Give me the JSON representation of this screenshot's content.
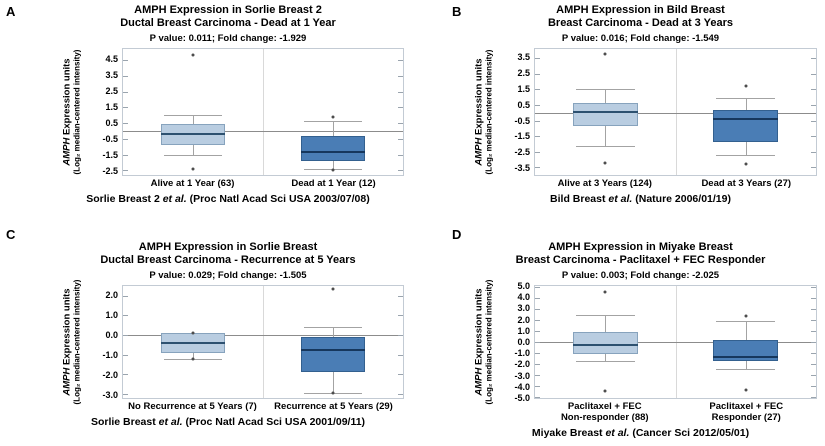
{
  "colors": {
    "box_light_fill": "#b9cde1",
    "box_light_border": "#87a3bd",
    "box_light_median": "#2d5170",
    "box_dark_fill": "#4a7db5",
    "box_dark_border": "#33608f",
    "box_dark_median": "#16375d",
    "whisker": "#a3a3a3",
    "frame": "#c3cbd4",
    "divider": "#d9d9d9",
    "refline": "#8c8c8c",
    "tickmark": "#9aa4ae",
    "outlier": "#4d4d4d"
  },
  "chart_data": [
    {
      "type": "box",
      "panel_label": "A",
      "title_line1": "AMPH Expression in Sorlie Breast 2",
      "title_line2": "Ductal Breast Carcinoma - Dead at 1 Year",
      "stats": "P value: 0.011;  Fold change: -1.929",
      "ylabel_gene": "AMPH",
      "ylabel_rest": " Expression units",
      "ylabel_sub": "(Log₂ median-centered intensity)",
      "yticks": [
        "4.5",
        "3.5",
        "2.5",
        "1.5",
        "0.5",
        "-0.5",
        "-1.5",
        "-2.5"
      ],
      "ylim": [
        -2.8,
        5.2
      ],
      "refline": 0,
      "grid": false,
      "groups": [
        {
          "label_lines": [
            "Alive at 1 Year (63)"
          ],
          "style": "light",
          "whisker_low": -1.55,
          "q1": -0.9,
          "median": -0.2,
          "q3": 0.45,
          "whisker_high": 1.0,
          "outliers": [
            4.8,
            -2.45
          ]
        },
        {
          "label_lines": [
            "Dead at 1 Year (12)"
          ],
          "style": "dark",
          "whisker_low": -2.45,
          "q1": -1.9,
          "median": -1.35,
          "q3": -0.3,
          "whisker_high": 0.65,
          "outliers": [
            0.9,
            -2.5
          ]
        }
      ],
      "caption_pre": "Sorlie Breast 2 ",
      "caption_italic": "et al.",
      "caption_post": " (Proc Natl Acad Sci USA 2003/07/08)"
    },
    {
      "type": "box",
      "panel_label": "B",
      "title_line1": "AMPH Expression in Bild Breast",
      "title_line2": "Breast Carcinoma - Dead at 3 Years",
      "stats": "P value: 0.016;  Fold change: -1.549",
      "ylabel_gene": "AMPH",
      "ylabel_rest": " Expression units",
      "ylabel_sub": "(Log₂ median-centered intensity)",
      "yticks": [
        "3.5",
        "2.5",
        "1.5",
        "0.5",
        "-0.5",
        "-1.5",
        "-2.5",
        "-3.5"
      ],
      "ylim": [
        -4.0,
        4.1
      ],
      "refline": 0,
      "grid": false,
      "groups": [
        {
          "label_lines": [
            "Alive at 3 Years (124)"
          ],
          "style": "light",
          "whisker_low": -2.15,
          "q1": -0.85,
          "median": 0.05,
          "q3": 0.65,
          "whisker_high": 1.55,
          "outliers": [
            3.8,
            -3.25
          ]
        },
        {
          "label_lines": [
            "Dead at 3 Years (27)"
          ],
          "style": "dark",
          "whisker_low": -2.7,
          "q1": -1.85,
          "median": -0.4,
          "q3": 0.15,
          "whisker_high": 0.95,
          "outliers": [
            1.7,
            -3.3
          ]
        }
      ],
      "caption_pre": "Bild Breast ",
      "caption_italic": "et al.",
      "caption_post": " (Nature 2006/01/19)"
    },
    {
      "type": "box",
      "panel_label": "C",
      "title_line1": "AMPH Expression in Sorlie Breast",
      "title_line2": "Ductal Breast Carcinoma - Recurrence at 5 Years",
      "stats": "P value: 0.029;  Fold change: -1.505",
      "ylabel_gene": "AMPH",
      "ylabel_rest": " Expression units",
      "ylabel_sub": "(Log₂ median-centered intensity)",
      "yticks": [
        "2.0",
        "1.0",
        "0.0",
        "-1.0",
        "-2.0",
        "-3.0"
      ],
      "ylim": [
        -3.2,
        2.5
      ],
      "refline": 0,
      "grid": false,
      "groups": [
        {
          "label_lines": [
            "No Recurrence at 5 Years (7)"
          ],
          "style": "light",
          "whisker_low": -1.2,
          "q1": -0.9,
          "median": -0.4,
          "q3": 0.1,
          "whisker_high": 0.1,
          "outliers": [
            0.1,
            -1.2
          ]
        },
        {
          "label_lines": [
            "Recurrence at 5 Years (29)"
          ],
          "style": "dark",
          "whisker_low": -2.95,
          "q1": -1.9,
          "median": -0.75,
          "q3": -0.1,
          "whisker_high": 0.4,
          "outliers": [
            2.35,
            -2.95
          ]
        }
      ],
      "caption_pre": "Sorlie Breast ",
      "caption_italic": "et al.",
      "caption_post": " (Proc Natl Acad Sci USA 2001/09/11)"
    },
    {
      "type": "box",
      "panel_label": "D",
      "title_line1": "AMPH Expression in Miyake Breast",
      "title_line2": "Breast Carcinoma - Paclitaxel + FEC Responder",
      "stats": "P value: 0.003;  Fold change: -2.025",
      "ylabel_gene": "AMPH",
      "ylabel_rest": " Expression units",
      "ylabel_sub": "(Log₂ median-centered intensity)",
      "yticks": [
        "5.0",
        "4.0",
        "3.0",
        "2.0",
        "1.0",
        "0.0",
        "-1.0",
        "-2.0",
        "-3.0",
        "-4.0",
        "-5.0"
      ],
      "ylim": [
        -5.1,
        5.1
      ],
      "refline": 0,
      "grid": false,
      "groups": [
        {
          "label_lines": [
            "Paclitaxel + FEC",
            "Non-responder (88)"
          ],
          "style": "light",
          "whisker_low": -1.7,
          "q1": -1.05,
          "median": -0.3,
          "q3": 0.95,
          "whisker_high": 2.5,
          "outliers": [
            4.55,
            -4.5
          ]
        },
        {
          "label_lines": [
            "Paclitaxel + FEC",
            "Responder (27)"
          ],
          "style": "dark",
          "whisker_low": -2.45,
          "q1": -1.7,
          "median": -1.35,
          "q3": 0.2,
          "whisker_high": 1.9,
          "outliers": [
            2.4,
            -4.35
          ]
        }
      ],
      "caption_pre": "Miyake Breast ",
      "caption_italic": "et al.",
      "caption_post": " (Cancer Sci 2012/05/01)"
    }
  ]
}
